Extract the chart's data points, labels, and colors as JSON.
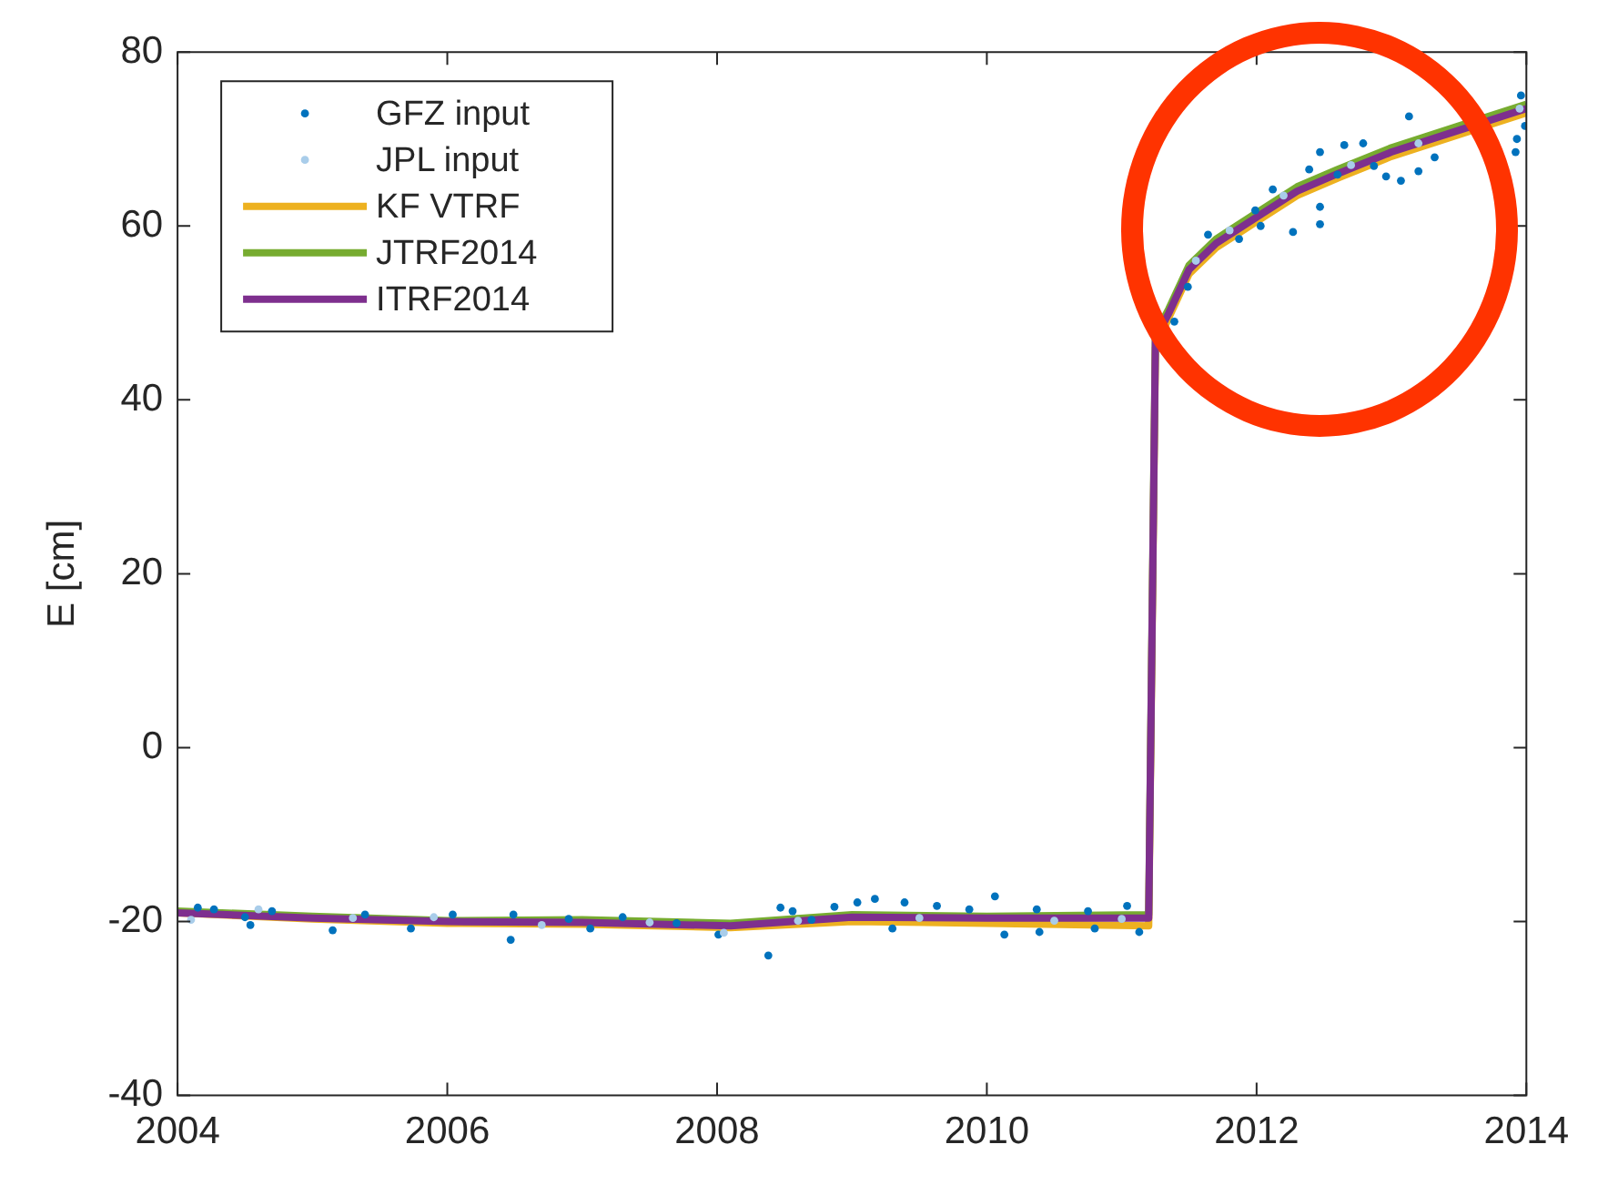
{
  "chart_data": {
    "type": "line",
    "ylabel": "E [cm]",
    "xlim": [
      2004,
      2014
    ],
    "xticks": [
      2004,
      2006,
      2008,
      2010,
      2012,
      2014
    ],
    "ylim": [
      -40,
      80
    ],
    "yticks": [
      -40,
      -20,
      0,
      20,
      40,
      60,
      80
    ],
    "grid": false,
    "legend": "top left",
    "series": [
      {
        "name": "GFZ input",
        "type": "scatter",
        "color": "#0072bd",
        "marker": "circle",
        "x": [
          2004.15,
          2004.27,
          2004.5,
          2004.54,
          2004.7,
          2005.15,
          2005.39,
          2005.73,
          2006.04,
          2006.47,
          2006.49,
          2006.9,
          2007.06,
          2007.3,
          2007.7,
          2008.01,
          2008.38,
          2008.47,
          2008.56,
          2008.7,
          2008.87,
          2009.04,
          2009.17,
          2009.3,
          2009.39,
          2009.63,
          2009.87,
          2010.06,
          2010.13,
          2010.37,
          2010.39,
          2010.75,
          2010.8,
          2011.04,
          2011.13,
          2011.39,
          2011.49,
          2011.64,
          2011.87,
          2011.99,
          2012.03,
          2012.12,
          2012.27,
          2012.39,
          2012.47,
          2012.47,
          2012.47,
          2012.6,
          2012.65,
          2012.79,
          2012.87,
          2012.96,
          2013.07,
          2013.13,
          2013.2,
          2013.32,
          2013.92,
          2013.93,
          2013.96,
          2013.99
        ],
        "values": [
          -18.4,
          -18.6,
          -19.5,
          -20.4,
          -18.8,
          -21,
          -19.2,
          -20.8,
          -19.2,
          -22.1,
          -19.2,
          -19.7,
          -20.8,
          -19.5,
          -20.2,
          -21.5,
          -23.9,
          -18.4,
          -18.8,
          -19.8,
          -18.3,
          -17.8,
          -17.4,
          -20.8,
          -17.8,
          -18.2,
          -18.6,
          -17.1,
          -21.5,
          -18.6,
          -21.2,
          -18.8,
          -20.8,
          -18.2,
          -21.2,
          49,
          53,
          59,
          58.5,
          61.8,
          60,
          64.2,
          59.3,
          66.5,
          62.2,
          60.2,
          68.5,
          65.9,
          69.3,
          69.5,
          66.9,
          65.7,
          65.2,
          72.6,
          66.3,
          67.9,
          68.5,
          70,
          75,
          71.5
        ]
      },
      {
        "name": "JPL input",
        "type": "scatter",
        "color": "#a9cdea",
        "marker": "circle",
        "x": [
          2004.1,
          2004.6,
          2005.3,
          2005.9,
          2006.7,
          2007.5,
          2008.05,
          2008.6,
          2009.5,
          2010.5,
          2011.0,
          2011.55,
          2011.8,
          2012.2,
          2012.7,
          2013.2,
          2013.6,
          2013.95
        ],
        "values": [
          -19.8,
          -18.6,
          -19.6,
          -19.5,
          -20.4,
          -20.1,
          -21.3,
          -19.9,
          -19.6,
          -19.9,
          -19.7,
          56,
          59.5,
          63.5,
          67,
          69.5,
          null,
          73.5
        ]
      },
      {
        "name": "KF VTRF",
        "type": "line",
        "color": "#edb120",
        "marker": "none",
        "x": [
          2004,
          2005,
          2006,
          2007,
          2008.1,
          2009,
          2010,
          2011.2,
          2011.25,
          2011.35,
          2011.5,
          2011.7,
          2012,
          2012.3,
          2012.6,
          2013,
          2013.5,
          2014
        ],
        "values": [
          -19,
          -19.7,
          -20.2,
          -20.3,
          -20.7,
          -20,
          -20.2,
          -20.5,
          46,
          49.5,
          54.5,
          57.5,
          60.5,
          63.5,
          65.5,
          68,
          70.5,
          73
        ]
      },
      {
        "name": "JTRF2014",
        "type": "line",
        "color": "#77ac30",
        "marker": "none",
        "x": [
          2004,
          2005,
          2006,
          2007,
          2008.1,
          2009,
          2010,
          2011.2,
          2011.25,
          2011.35,
          2011.5,
          2011.7,
          2012,
          2012.3,
          2012.6,
          2013,
          2013.5,
          2014
        ],
        "values": [
          -18.8,
          -19.4,
          -19.9,
          -19.8,
          -20.2,
          -19.2,
          -19.4,
          -19.2,
          47.5,
          50.5,
          55.5,
          58.5,
          61.5,
          64.5,
          66.5,
          69,
          71.5,
          74
        ]
      },
      {
        "name": "ITRF2014",
        "type": "line",
        "color": "#7e2f8e",
        "marker": "none",
        "x": [
          2004,
          2005,
          2006,
          2007,
          2008.1,
          2009,
          2010,
          2011.2,
          2011.25,
          2011.35,
          2011.5,
          2011.7,
          2012,
          2012.3,
          2012.6,
          2013,
          2013.5,
          2014
        ],
        "values": [
          -19,
          -19.6,
          -20,
          -20.1,
          -20.5,
          -19.5,
          -19.6,
          -19.6,
          47,
          50,
          55,
          58,
          61,
          64,
          66,
          68.5,
          71,
          73.5
        ]
      }
    ]
  }
}
